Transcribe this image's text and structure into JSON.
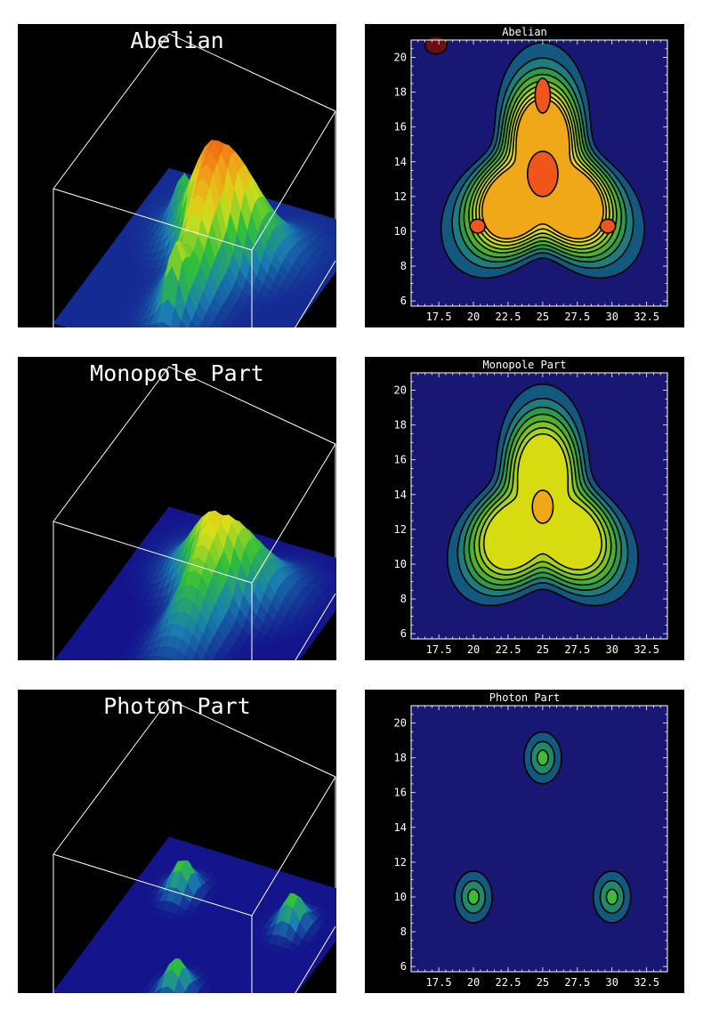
{
  "chart_data": [
    {
      "type": "surface3d",
      "title": "Abelian",
      "colormap": [
        "#14148c",
        "#1a7fb0",
        "#2fbf3a",
        "#d8df1a",
        "#f0a018",
        "#f04a0e"
      ],
      "peaks": [
        {
          "x": 25,
          "y": 18,
          "relative_height": 1.0
        },
        {
          "x": 20,
          "y": 10,
          "relative_height": 0.75
        },
        {
          "x": 30,
          "y": 10,
          "relative_height": 0.75
        },
        {
          "x": 25,
          "y": 13.5,
          "relative_height": 0.85
        }
      ]
    },
    {
      "type": "contour",
      "title": "Abelian",
      "xlim": [
        15.5,
        34
      ],
      "ylim": [
        5.7,
        21
      ],
      "xticks": [
        "17.5",
        "20",
        "22.5",
        "25",
        "27.5",
        "30",
        "32.5"
      ],
      "yticks": [
        "6",
        "8",
        "10",
        "12",
        "14",
        "16",
        "18",
        "20"
      ],
      "levels": [
        {
          "r0": 6.2,
          "k": 0.3,
          "color": "#13597f"
        },
        {
          "r0": 5.6,
          "k": 0.28,
          "color": "#1e7c7c"
        },
        {
          "r0": 5.2,
          "k": 0.27,
          "color": "#2a9a4c"
        },
        {
          "r0": 4.9,
          "k": 0.27,
          "color": "#4cb02c"
        },
        {
          "r0": 4.6,
          "k": 0.27,
          "color": "#7bc51e"
        },
        {
          "r0": 4.35,
          "k": 0.28,
          "color": "#a8d318"
        },
        {
          "r0": 4.1,
          "k": 0.29,
          "color": "#d4dc1a"
        },
        {
          "r0": 3.85,
          "k": 0.31,
          "color": "#f0d21c"
        },
        {
          "r0": 3.6,
          "k": 0.34,
          "color": "#f0a818"
        }
      ],
      "blobs": [
        {
          "cx": 25,
          "cy": 13.3,
          "rx": 1.1,
          "ry": 1.3,
          "color": "#f0561a"
        },
        {
          "cx": 25,
          "cy": 17.8,
          "rx": 0.55,
          "ry": 1.0,
          "color": "#f0561a"
        },
        {
          "cx": 20.3,
          "cy": 10.3,
          "rx": 0.55,
          "ry": 0.4,
          "color": "#f0561a"
        },
        {
          "cx": 29.7,
          "cy": 10.3,
          "rx": 0.55,
          "ry": 0.4,
          "color": "#f0561a"
        },
        {
          "cx": 17.3,
          "cy": 20.7,
          "rx": 0.8,
          "ry": 0.5,
          "color": "#6a0f12"
        }
      ]
    },
    {
      "type": "surface3d",
      "title": "Monopole Part",
      "colormap": [
        "#14148c",
        "#1a7fb0",
        "#2fbf3a",
        "#d8df1a",
        "#f0a018",
        "#f04a0e"
      ],
      "peaks": [
        {
          "x": 25,
          "y": 13.5,
          "relative_height": 0.8
        }
      ]
    },
    {
      "type": "contour",
      "title": "Monopole Part",
      "xlim": [
        15.5,
        34
      ],
      "ylim": [
        5.7,
        21
      ],
      "xticks": [
        "17.5",
        "20",
        "22.5",
        "25",
        "27.5",
        "30",
        "32.5"
      ],
      "yticks": [
        "6",
        "8",
        "10",
        "12",
        "14",
        "16",
        "18",
        "20"
      ],
      "levels": [
        {
          "r0": 5.9,
          "k": 0.28,
          "color": "#13597f"
        },
        {
          "r0": 5.3,
          "k": 0.27,
          "color": "#1e7c7c"
        },
        {
          "r0": 4.9,
          "k": 0.27,
          "color": "#2a9a4c"
        },
        {
          "r0": 4.55,
          "k": 0.28,
          "color": "#4cb02c"
        },
        {
          "r0": 4.2,
          "k": 0.29,
          "color": "#7bc51e"
        },
        {
          "r0": 3.85,
          "k": 0.31,
          "color": "#a8d318"
        },
        {
          "r0": 3.45,
          "k": 0.36,
          "color": "#d6dc10"
        }
      ],
      "blobs": [
        {
          "cx": 25,
          "cy": 13.3,
          "rx": 0.75,
          "ry": 0.95,
          "color": "#f0a818"
        }
      ]
    },
    {
      "type": "surface3d",
      "title": "Photon Part",
      "colormap": [
        "#14148c",
        "#1a7fb0",
        "#2fbf3a",
        "#d8df1a",
        "#f0a018",
        "#f04a0e"
      ],
      "peaks": [
        {
          "x": 25,
          "y": 18,
          "relative_height": 0.25
        },
        {
          "x": 20,
          "y": 10,
          "relative_height": 0.25
        },
        {
          "x": 30,
          "y": 10,
          "relative_height": 0.25
        }
      ]
    },
    {
      "type": "contour",
      "title": "Photon Part",
      "xlim": [
        15.5,
        34
      ],
      "ylim": [
        5.7,
        21
      ],
      "xticks": [
        "17.5",
        "20",
        "22.5",
        "25",
        "27.5",
        "30",
        "32.5"
      ],
      "yticks": [
        "6",
        "8",
        "10",
        "12",
        "14",
        "16",
        "18",
        "20"
      ],
      "levels": [],
      "peaks": [
        {
          "x": 25,
          "y": 18,
          "rings": [
            1.35,
            0.85,
            0.4
          ],
          "colors": [
            "#13597f",
            "#1e8a6a",
            "#3dbb3a"
          ]
        },
        {
          "x": 20,
          "y": 10,
          "rings": [
            1.35,
            0.85,
            0.4
          ],
          "colors": [
            "#13597f",
            "#1e8a6a",
            "#3dbb3a"
          ]
        },
        {
          "x": 30,
          "y": 10,
          "rings": [
            1.35,
            0.85,
            0.4
          ],
          "colors": [
            "#13597f",
            "#1e8a6a",
            "#3dbb3a"
          ]
        }
      ]
    }
  ]
}
